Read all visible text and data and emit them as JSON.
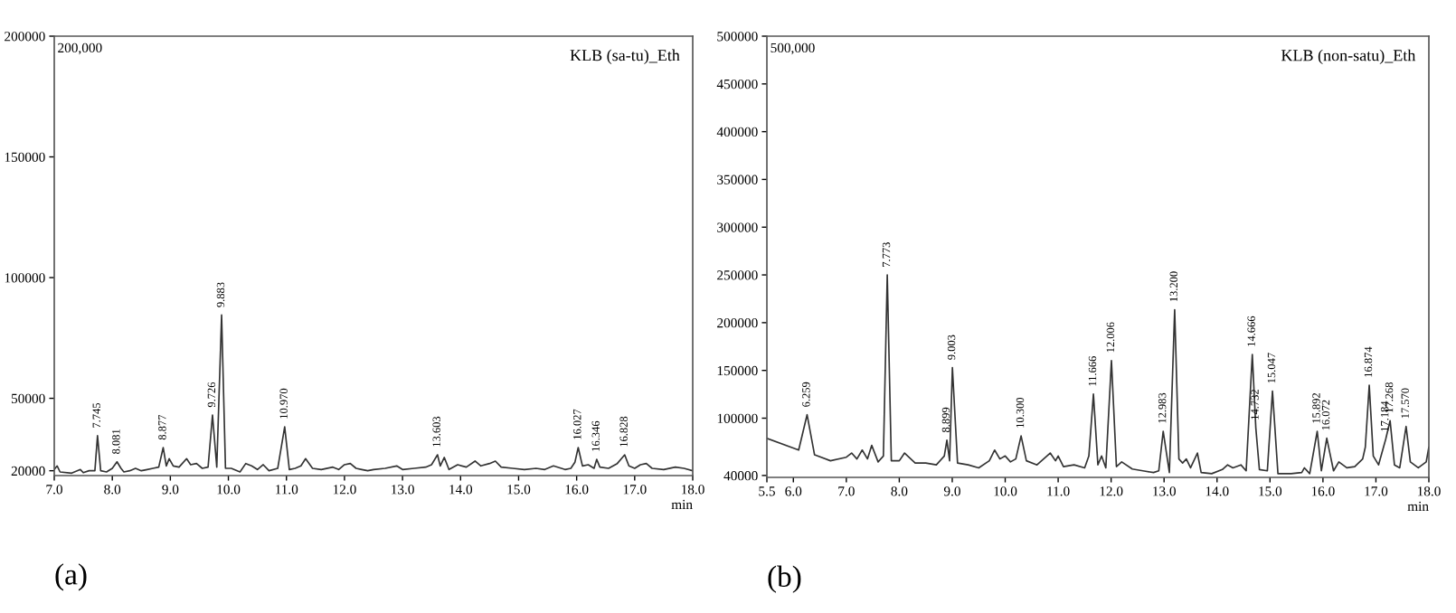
{
  "chart_data": [
    {
      "type": "line",
      "title": "(a)",
      "subtitle": "KLB (sa-tu)_Eth",
      "xlabel": "min",
      "grid": false,
      "legend": false,
      "marker": "none",
      "line_style": "solid",
      "xlim": [
        7.0,
        18.0
      ],
      "xticks": [
        {
          "value": 7.0,
          "label": "7.0"
        },
        {
          "value": 8.0,
          "label": "8.0"
        },
        {
          "value": 9.0,
          "label": "9.0"
        },
        {
          "value": 10.0,
          "label": "10.0"
        },
        {
          "value": 11.0,
          "label": "11.0"
        },
        {
          "value": 12.0,
          "label": "12.0"
        },
        {
          "value": 13.0,
          "label": "13.0"
        },
        {
          "value": 14.0,
          "label": "14.0"
        },
        {
          "value": 15.0,
          "label": "15.0"
        },
        {
          "value": 16.0,
          "label": "16.0"
        },
        {
          "value": 17.0,
          "label": "17.0"
        },
        {
          "value": 18.0,
          "label": "18.0"
        }
      ],
      "ylim": [
        18000,
        200000
      ],
      "yticks": [
        20000,
        50000,
        100000,
        150000,
        200000
      ],
      "series": [
        {
          "color": "#333333",
          "x": [
            7.0,
            7.05,
            7.1,
            7.3,
            7.45,
            7.5,
            7.6,
            7.7,
            7.745,
            7.8,
            7.9,
            8.0,
            8.081,
            8.15,
            8.2,
            8.3,
            8.4,
            8.5,
            8.6,
            8.7,
            8.8,
            8.877,
            8.93,
            8.98,
            9.05,
            9.15,
            9.28,
            9.35,
            9.45,
            9.55,
            9.65,
            9.726,
            9.8,
            9.883,
            9.95,
            10.05,
            10.2,
            10.3,
            10.4,
            10.5,
            10.6,
            10.7,
            10.85,
            10.97,
            11.05,
            11.15,
            11.25,
            11.33,
            11.45,
            11.6,
            11.8,
            11.9,
            12.0,
            12.1,
            12.2,
            12.3,
            12.4,
            12.5,
            12.7,
            12.9,
            13.0,
            13.2,
            13.4,
            13.5,
            13.603,
            13.65,
            13.72,
            13.8,
            13.95,
            14.1,
            14.25,
            14.35,
            14.5,
            14.6,
            14.7,
            14.9,
            15.1,
            15.3,
            15.45,
            15.6,
            15.8,
            15.9,
            15.97,
            16.027,
            16.1,
            16.2,
            16.3,
            16.346,
            16.4,
            16.55,
            16.7,
            16.828,
            16.9,
            17.0,
            17.1,
            17.2,
            17.3,
            17.5,
            17.7,
            17.85,
            18.0
          ],
          "values": [
            20500,
            22000,
            19500,
            19000,
            20500,
            19200,
            20000,
            20000,
            34500,
            20000,
            19500,
            21000,
            23700,
            21000,
            19500,
            20000,
            21000,
            20000,
            20500,
            21000,
            21500,
            29600,
            22000,
            25000,
            22000,
            21500,
            25000,
            22500,
            23000,
            21000,
            21500,
            43100,
            21500,
            84500,
            21000,
            21000,
            19500,
            23000,
            22000,
            20500,
            22500,
            20000,
            21000,
            38200,
            20500,
            21000,
            22000,
            25000,
            21000,
            20500,
            21500,
            20500,
            22500,
            23000,
            21000,
            20500,
            20000,
            20500,
            21000,
            22000,
            20500,
            21000,
            21500,
            22500,
            26600,
            22000,
            25500,
            20500,
            22500,
            21500,
            24000,
            22000,
            23000,
            24000,
            21500,
            21000,
            20500,
            21000,
            20500,
            22000,
            20500,
            21000,
            23500,
            29600,
            22000,
            22500,
            21000,
            24700,
            21500,
            21000,
            23000,
            26600,
            22000,
            21000,
            22500,
            23000,
            21000,
            20500,
            21500,
            21000,
            20000
          ]
        }
      ],
      "annotations": [
        "200,000",
        {
          "text": "7.745",
          "x": 7.745,
          "y": 34500
        },
        {
          "text": "8.081",
          "x": 8.081,
          "y": 23700
        },
        {
          "text": "8.877",
          "x": 8.877,
          "y": 29600
        },
        {
          "text": "9.726",
          "x": 9.726,
          "y": 43100
        },
        {
          "text": "9.883",
          "x": 9.883,
          "y": 84500
        },
        {
          "text": "10.970",
          "x": 10.97,
          "y": 38200
        },
        {
          "text": "13.603",
          "x": 13.603,
          "y": 26600
        },
        {
          "text": "16.027",
          "x": 16.027,
          "y": 29600
        },
        {
          "text": "16.346",
          "x": 16.346,
          "y": 24700
        },
        {
          "text": "16.828",
          "x": 16.828,
          "y": 26600
        }
      ]
    },
    {
      "type": "line",
      "title": "(b)",
      "subtitle": "KLB (non-satu)_Eth",
      "xlabel": "min",
      "grid": false,
      "legend": false,
      "marker": "none",
      "line_style": "solid",
      "xlim": [
        5.5,
        18.0
      ],
      "xticks": [
        {
          "value": 5.5,
          "label": "5.5"
        },
        {
          "value": 6.0,
          "label": "6.0"
        },
        {
          "value": 7.0,
          "label": "7.0"
        },
        {
          "value": 8.0,
          "label": "8.0"
        },
        {
          "value": 9.0,
          "label": "9.0"
        },
        {
          "value": 10.0,
          "label": "10.0"
        },
        {
          "value": 11.0,
          "label": "11.0"
        },
        {
          "value": 12.0,
          "label": "12.0"
        },
        {
          "value": 13.0,
          "label": "13.0"
        },
        {
          "value": 14.0,
          "label": "14.0"
        },
        {
          "value": 15.0,
          "label": "15.0"
        },
        {
          "value": 16.0,
          "label": "16.0"
        },
        {
          "value": 17.0,
          "label": "17.0"
        },
        {
          "value": 18.0,
          "label": "18.0"
        }
      ],
      "ylim": [
        38000,
        500000
      ],
      "yticks": [
        40000,
        100000,
        150000,
        200000,
        250000,
        300000,
        350000,
        400000,
        450000,
        500000
      ],
      "series": [
        {
          "color": "#333333",
          "x": [
            5.5,
            6.1,
            6.259,
            6.4,
            6.7,
            7.0,
            7.1,
            7.2,
            7.3,
            7.4,
            7.48,
            7.6,
            7.7,
            7.773,
            7.85,
            8.0,
            8.1,
            8.3,
            8.5,
            8.7,
            8.85,
            8.899,
            8.95,
            9.003,
            9.1,
            9.3,
            9.5,
            9.7,
            9.8,
            9.9,
            10.0,
            10.1,
            10.2,
            10.3,
            10.4,
            10.6,
            10.85,
            10.95,
            11.0,
            11.1,
            11.3,
            11.5,
            11.58,
            11.666,
            11.75,
            11.82,
            11.9,
            12.006,
            12.1,
            12.2,
            12.4,
            12.6,
            12.8,
            12.9,
            12.983,
            13.1,
            13.2,
            13.28,
            13.35,
            13.42,
            13.5,
            13.63,
            13.7,
            13.9,
            14.1,
            14.2,
            14.3,
            14.45,
            14.55,
            14.666,
            14.732,
            14.8,
            14.95,
            15.047,
            15.15,
            15.4,
            15.6,
            15.65,
            15.75,
            15.892,
            15.97,
            16.072,
            16.2,
            16.3,
            16.45,
            16.6,
            16.75,
            16.8,
            16.874,
            16.95,
            17.05,
            17.184,
            17.268,
            17.35,
            17.45,
            17.57,
            17.65,
            17.8,
            17.95,
            18.0
          ],
          "values": [
            78900,
            66600,
            103600,
            61600,
            55400,
            59100,
            63500,
            57300,
            66600,
            57300,
            71500,
            54200,
            60400,
            250000,
            55400,
            55400,
            63500,
            53000,
            53000,
            51100,
            60400,
            77000,
            55400,
            153000,
            53000,
            51100,
            48000,
            55400,
            66600,
            57300,
            60400,
            54200,
            57300,
            81400,
            55400,
            51100,
            63500,
            55400,
            60400,
            49300,
            51100,
            48000,
            60400,
            125200,
            51100,
            60400,
            48000,
            160400,
            49300,
            54200,
            46800,
            44900,
            43100,
            44900,
            86300,
            43100,
            213600,
            57300,
            53000,
            57300,
            48000,
            63500,
            43100,
            41900,
            46200,
            51100,
            48000,
            51100,
            44900,
            166600,
            90000,
            46200,
            44900,
            128300,
            41900,
            41900,
            43100,
            48000,
            41900,
            86300,
            44900,
            79000,
            44900,
            54200,
            48000,
            49300,
            57300,
            69700,
            134500,
            60400,
            51100,
            77700,
            97400,
            51100,
            48000,
            91300,
            54200,
            48000,
            54200,
            69700
          ]
        }
      ],
      "annotations": [
        "500,000",
        {
          "text": "6.259",
          "x": 6.259,
          "y": 103600
        },
        {
          "text": "7.773",
          "x": 7.773,
          "y": 250000
        },
        {
          "text": "8.899",
          "x": 8.899,
          "y": 77000
        },
        {
          "text": "9.003",
          "x": 9.003,
          "y": 153000
        },
        {
          "text": "10.300",
          "x": 10.3,
          "y": 81400
        },
        {
          "text": "11.666",
          "x": 11.666,
          "y": 125200
        },
        {
          "text": "12.006",
          "x": 12.006,
          "y": 160400
        },
        {
          "text": "12.983",
          "x": 12.983,
          "y": 86300
        },
        {
          "text": "13.200",
          "x": 13.2,
          "y": 213600
        },
        {
          "text": "14.666",
          "x": 14.666,
          "y": 166600
        },
        {
          "text": "14.732",
          "x": 14.732,
          "y": 90000
        },
        {
          "text": "15.047",
          "x": 15.047,
          "y": 128300
        },
        {
          "text": "15.892",
          "x": 15.892,
          "y": 86300
        },
        {
          "text": "16.072",
          "x": 16.072,
          "y": 79000
        },
        {
          "text": "16.874",
          "x": 16.874,
          "y": 134500
        },
        {
          "text": "17.184",
          "x": 17.184,
          "y": 77700
        },
        {
          "text": "17.268",
          "x": 17.268,
          "y": 97400
        },
        {
          "text": "17.570",
          "x": 17.57,
          "y": 91300
        }
      ]
    }
  ]
}
